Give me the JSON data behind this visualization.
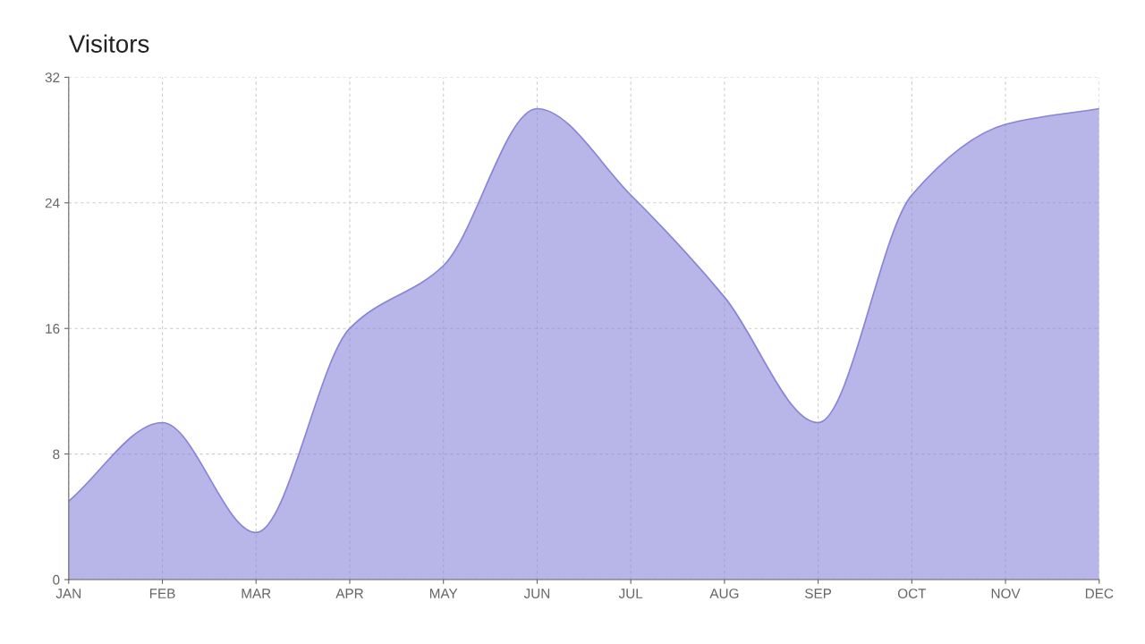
{
  "chart_data": {
    "type": "area",
    "title": "Visitors",
    "categories": [
      "JAN",
      "FEB",
      "MAR",
      "APR",
      "MAY",
      "JUN",
      "JUL",
      "AUG",
      "SEP",
      "OCT",
      "NOV",
      "DEC"
    ],
    "series": [
      {
        "color": "#8884d8",
        "values": [
          5,
          10,
          3,
          16,
          20,
          30,
          24.5,
          18,
          10,
          24.5,
          29,
          30
        ]
      }
    ],
    "ylim": [
      0,
      32
    ],
    "yticks": [
      0,
      8,
      16,
      24,
      32
    ],
    "grid": true,
    "line_style": "solid"
  }
}
